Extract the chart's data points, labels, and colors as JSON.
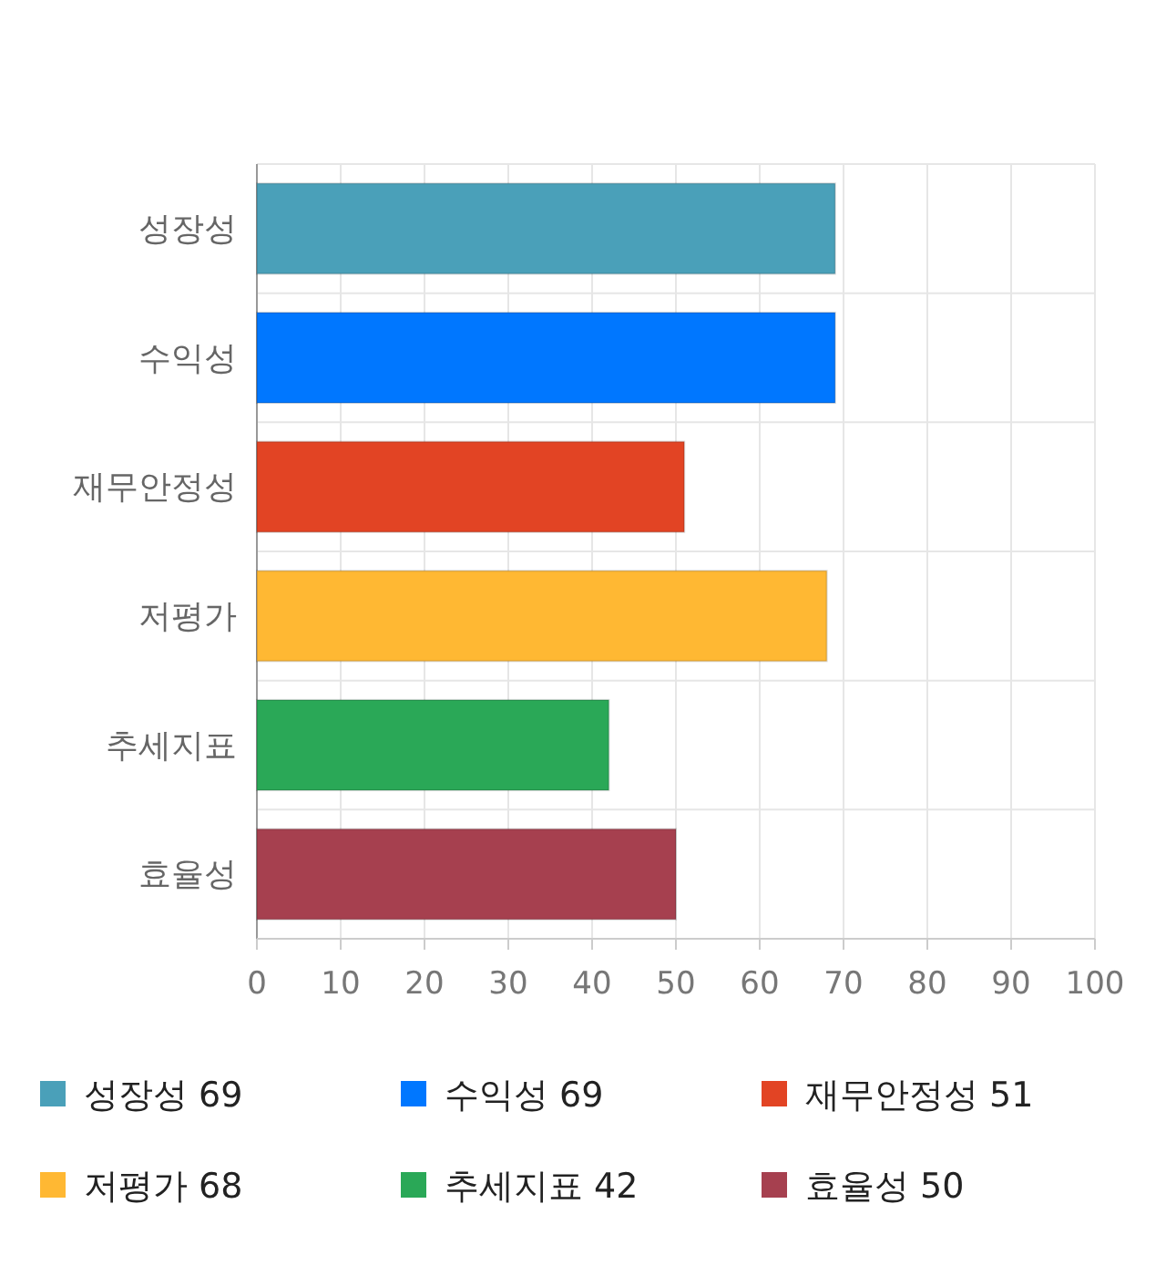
{
  "chart_data": {
    "type": "bar",
    "orientation": "horizontal",
    "categories": [
      "성장성",
      "수익성",
      "재무안정성",
      "저평가",
      "추세지표",
      "효율성"
    ],
    "series": [
      {
        "name": "성장성 69",
        "color": "#4aa0b9",
        "values": [
          69,
          null,
          null,
          null,
          null,
          null
        ]
      },
      {
        "name": "수익성 69",
        "color": "#0077ff",
        "values": [
          null,
          69,
          null,
          null,
          null,
          null
        ]
      },
      {
        "name": "재무안정성 51",
        "color": "#e24424",
        "values": [
          null,
          null,
          51,
          null,
          null,
          null
        ]
      },
      {
        "name": "저평가 68",
        "color": "#ffb833",
        "values": [
          null,
          null,
          null,
          68,
          null,
          null
        ]
      },
      {
        "name": "추세지표 42",
        "color": "#2aa857",
        "values": [
          null,
          null,
          null,
          null,
          42,
          null
        ]
      },
      {
        "name": "효율성 50",
        "color": "#a6404f",
        "values": [
          null,
          null,
          null,
          null,
          null,
          50
        ]
      }
    ],
    "xlim": [
      0,
      100
    ],
    "xticks": [
      0,
      10,
      20,
      30,
      40,
      50,
      60,
      70,
      80,
      90,
      100
    ],
    "grid": true,
    "legend": "bottom"
  }
}
